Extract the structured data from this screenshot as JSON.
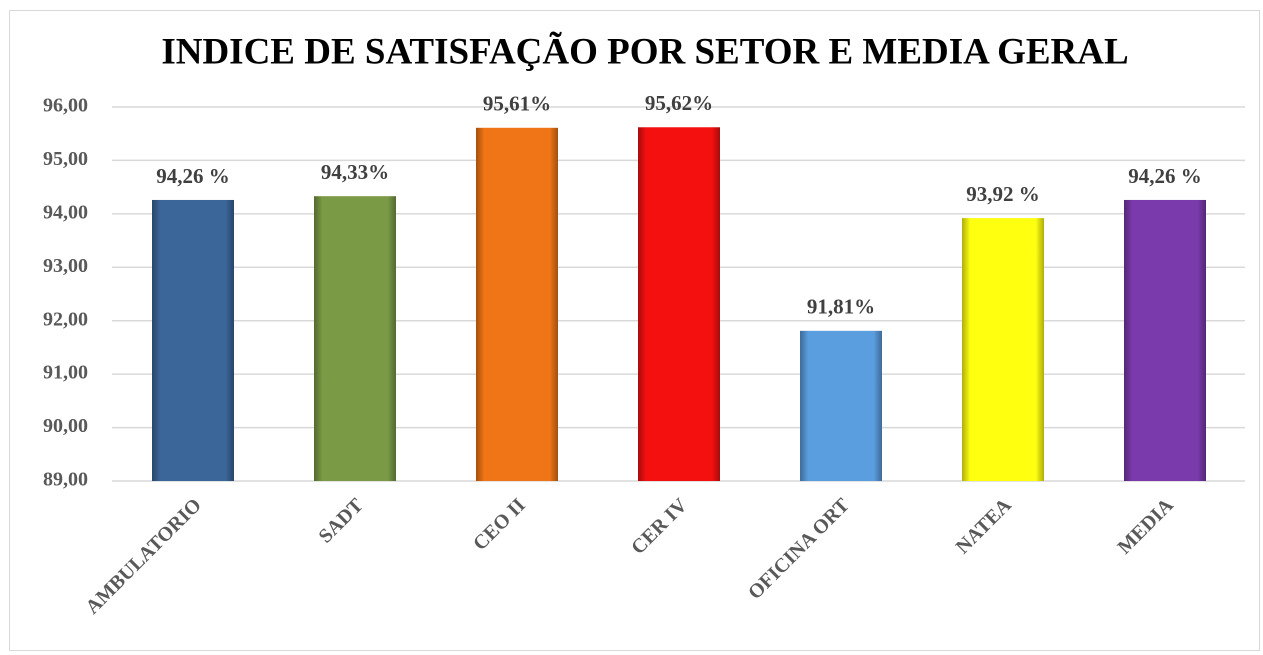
{
  "chart_data": {
    "type": "bar",
    "title": "INDICE DE SATISFAÇÃO POR SETOR E MEDIA GERAL",
    "categories": [
      "AMBULATORIO",
      "SADT",
      "CEO II",
      "CER IV",
      "OFICINA ORT",
      "NATEA",
      "MEDIA"
    ],
    "values": [
      94.26,
      94.33,
      95.61,
      95.62,
      91.81,
      93.92,
      94.26
    ],
    "value_labels": [
      "94,26 %",
      "94,33%",
      "95,61%",
      "95,62%",
      "91,81%",
      "93,92 %",
      "94,26 %"
    ],
    "colors": [
      "#3a6699",
      "#7a9a45",
      "#f07516",
      "#f51010",
      "#5b9ee0",
      "#ffff10",
      "#7a3aab"
    ],
    "ylim": [
      89,
      96
    ],
    "yticks": [
      {
        "value": 89,
        "label": "89,00"
      },
      {
        "value": 90,
        "label": "90,00"
      },
      {
        "value": 91,
        "label": "91,00"
      },
      {
        "value": 92,
        "label": "92,00"
      },
      {
        "value": 93,
        "label": "93,00"
      },
      {
        "value": 94,
        "label": "94,00"
      },
      {
        "value": 95,
        "label": "95,00"
      },
      {
        "value": 96,
        "label": "96,00"
      }
    ],
    "grid": true
  }
}
